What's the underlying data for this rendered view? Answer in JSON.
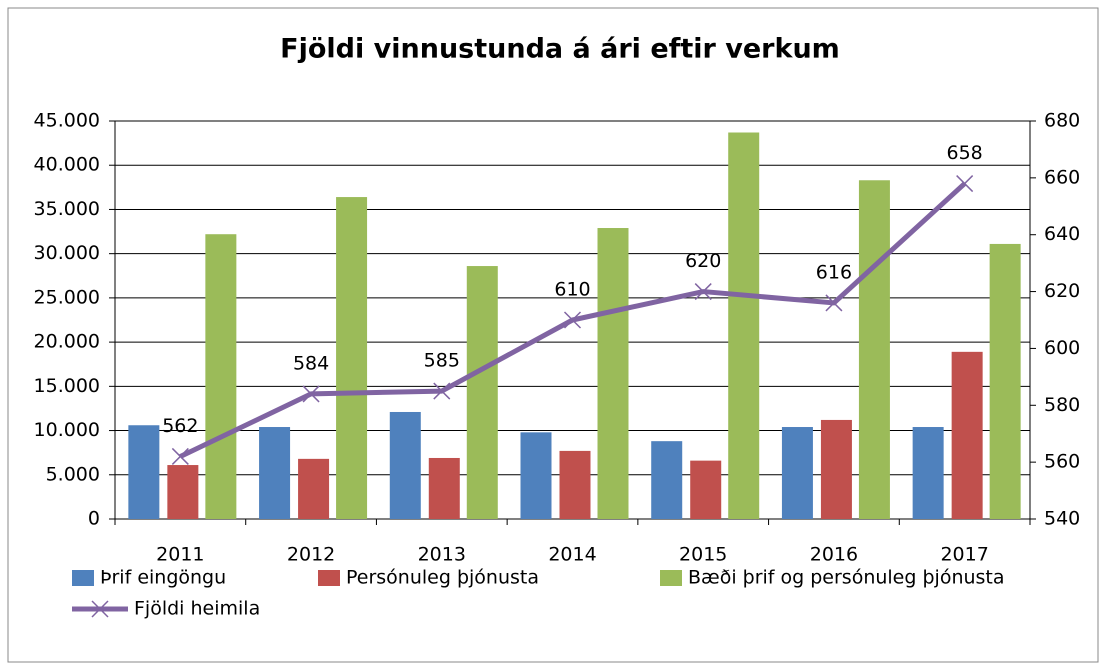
{
  "chart_data": {
    "type": "bar-line",
    "title": "Fjöldi vinnustunda á ári eftir verkum",
    "categories": [
      "2011",
      "2012",
      "2013",
      "2014",
      "2015",
      "2016",
      "2017"
    ],
    "series": [
      {
        "name": "Þrif eingöngu",
        "color": "#4f81bd",
        "values": [
          10600,
          10400,
          12100,
          9800,
          8800,
          10400,
          10400
        ]
      },
      {
        "name": "Persónuleg þjónusta",
        "color": "#c0504d",
        "values": [
          6100,
          6800,
          6900,
          7700,
          6600,
          11200,
          18900
        ]
      },
      {
        "name": "Bæði þrif og persónuleg þjónusta",
        "color": "#9bbb59",
        "values": [
          32200,
          36400,
          28600,
          32900,
          43700,
          38300,
          31100
        ]
      },
      {
        "name": "Fjöldi heimila",
        "color": "#8064a2",
        "axis": "y2",
        "type": "line",
        "values": [
          562,
          584,
          585,
          610,
          620,
          616,
          658
        ]
      }
    ],
    "ylim": [
      0,
      45000
    ],
    "yticks": [
      0,
      {
        "value": 5000,
        "label": "5.000"
      },
      {
        "value": 10000,
        "label": "10.000"
      },
      {
        "value": 15000,
        "label": "15.000"
      },
      {
        "value": 20000,
        "label": "20.000"
      },
      {
        "value": 25000,
        "label": "25.000"
      },
      {
        "value": 30000,
        "label": "30.000"
      },
      {
        "value": 35000,
        "label": "35.000"
      },
      {
        "value": 40000,
        "label": "40.000"
      },
      {
        "value": 45000,
        "label": "45.000"
      }
    ],
    "y2lim": [
      540,
      680
    ],
    "y2ticks": [
      540,
      560,
      580,
      600,
      620,
      640,
      660,
      680
    ],
    "grid": true,
    "legend": "bottom"
  }
}
